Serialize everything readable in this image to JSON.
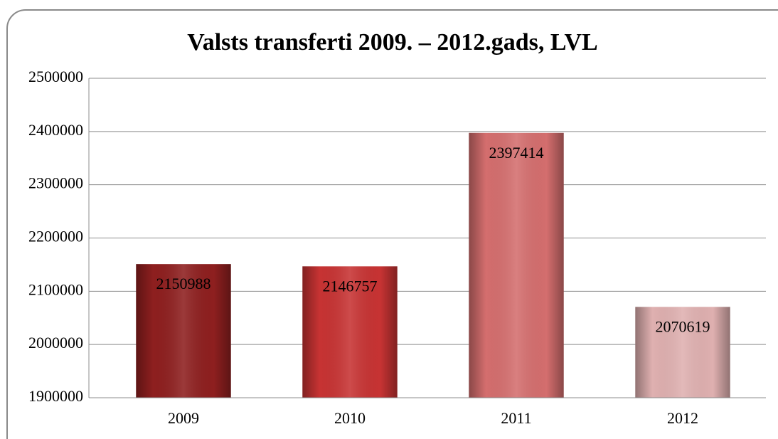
{
  "chart_data": {
    "type": "bar",
    "title": "Valsts transferti 2009. – 2012.gads, LVL",
    "categories": [
      "2009",
      "2010",
      "2011",
      "2012"
    ],
    "values": [
      2150988,
      2146757,
      2397414,
      2070619
    ],
    "colors": [
      "#8e1f1f",
      "#c73333",
      "#d46e6e",
      "#dfb0b0"
    ],
    "ylim": [
      1900000,
      2500000
    ],
    "yticks": [
      1900000,
      2000000,
      2100000,
      2200000,
      2300000,
      2400000,
      2500000
    ],
    "grid": true
  }
}
